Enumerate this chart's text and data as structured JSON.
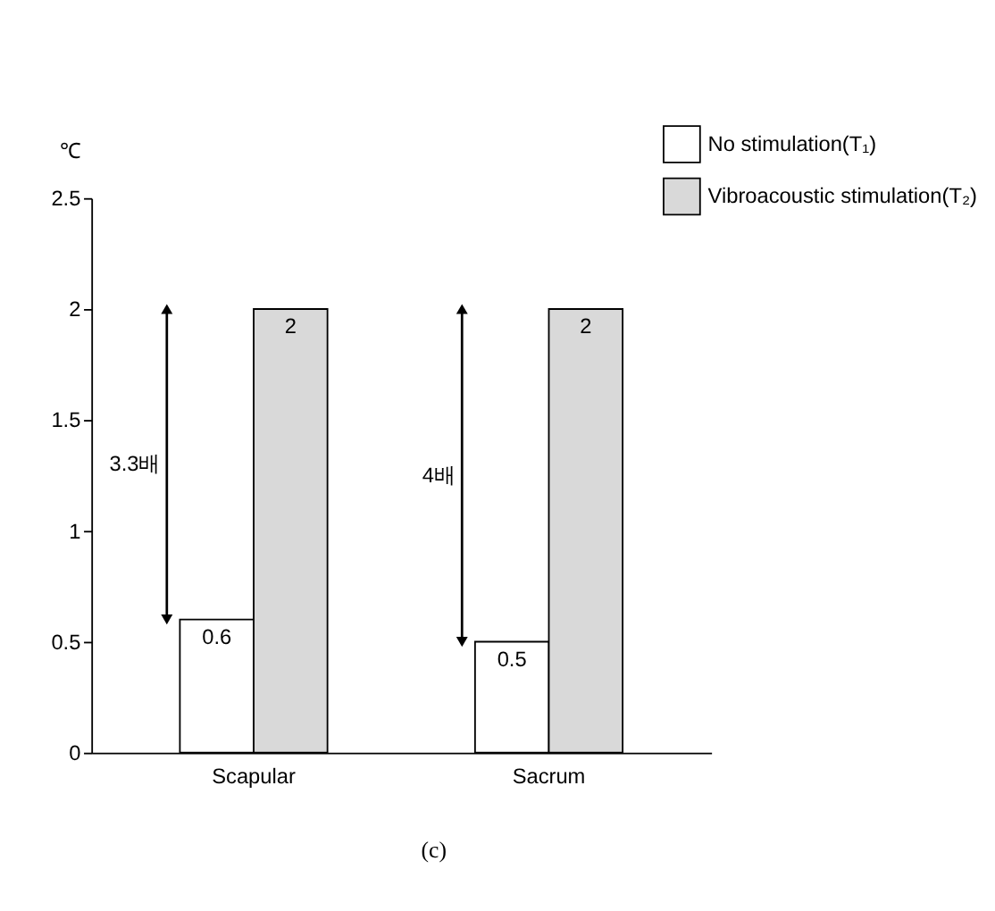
{
  "chart_data": {
    "type": "bar",
    "ylabel": "℃",
    "categories": [
      "Scapular",
      "Sacrum"
    ],
    "series": [
      {
        "name": "No stimulation(T₁)",
        "color": "#ffffff",
        "values": [
          0.6,
          0.5
        ]
      },
      {
        "name": "Vibroacoustic stimulation(T₂)",
        "color": "#d9d9d9",
        "values": [
          2,
          2
        ]
      }
    ],
    "ylim": [
      0,
      2.5
    ],
    "yticks": [
      0,
      0.5,
      1,
      1.5,
      2,
      2.5
    ],
    "grid": false,
    "legend": "top right",
    "data_labels": true,
    "annotations": [
      "3.3배",
      "4배",
      "(c)"
    ]
  }
}
